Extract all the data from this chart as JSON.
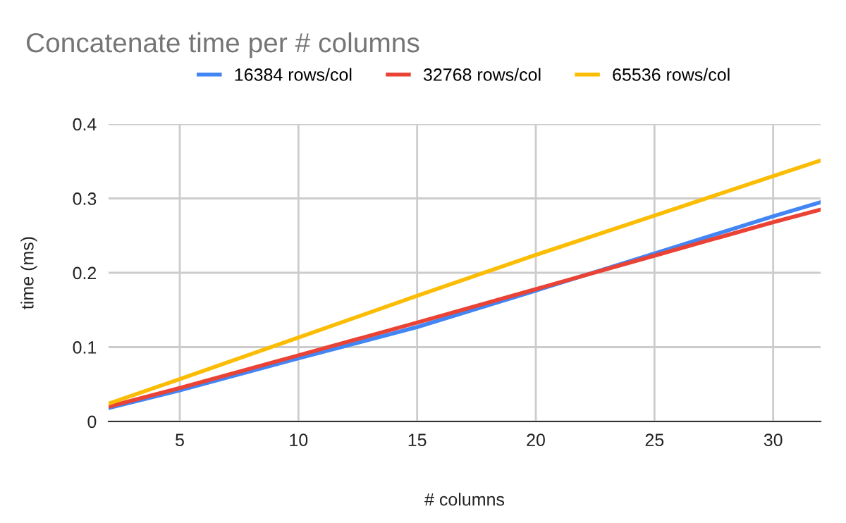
{
  "chart_data": {
    "type": "line",
    "title": "Concatenate time per # columns",
    "xlabel": "# columns",
    "ylabel": "time (ms)",
    "series": [
      {
        "name": "16384 rows/col",
        "color": "#4285f4",
        "x": [
          2,
          5,
          10,
          15,
          20,
          25,
          30,
          32
        ],
        "values": [
          0.018,
          0.042,
          0.085,
          0.127,
          0.176,
          0.226,
          0.276,
          0.295
        ]
      },
      {
        "name": "32768 rows/col",
        "color": "#ea4335",
        "x": [
          2,
          5,
          10,
          15,
          20,
          25,
          30,
          32
        ],
        "values": [
          0.02,
          0.045,
          0.089,
          0.133,
          0.178,
          0.223,
          0.268,
          0.285
        ]
      },
      {
        "name": "65536 rows/col",
        "color": "#fbbc04",
        "x": [
          2,
          5,
          10,
          15,
          20,
          25,
          30,
          32
        ],
        "values": [
          0.024,
          0.057,
          0.113,
          0.169,
          0.224,
          0.277,
          0.33,
          0.351
        ]
      }
    ],
    "xlim": [
      2,
      32
    ],
    "xticks": [
      5,
      10,
      15,
      20,
      25,
      30
    ],
    "ylim": [
      0,
      0.4
    ],
    "yticks": [
      0,
      0.1,
      0.2,
      0.3,
      0.4
    ],
    "grid": true,
    "legend": "top",
    "marker": "none",
    "line_style": "solid"
  }
}
